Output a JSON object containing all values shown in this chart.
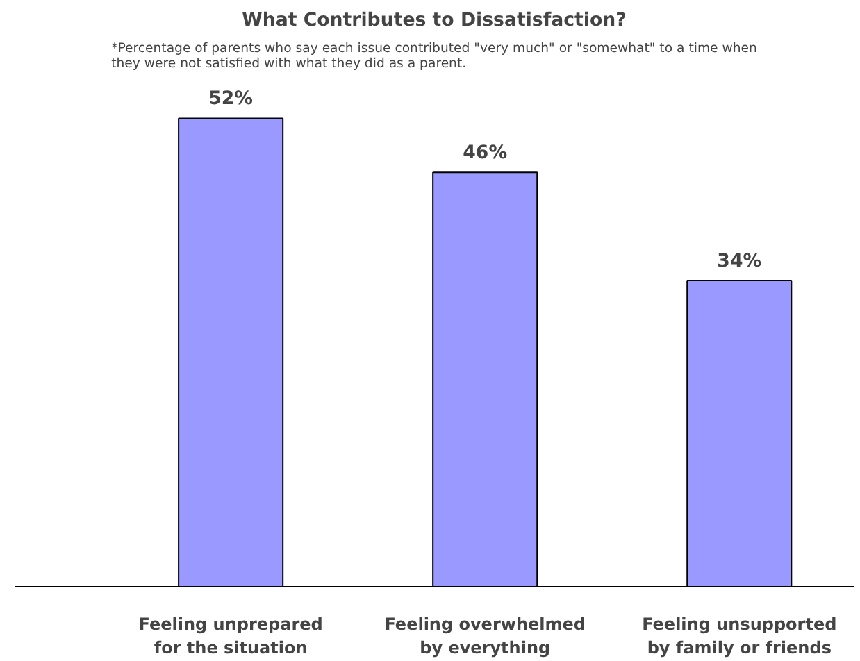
{
  "chart_data": {
    "type": "bar",
    "title": "What Contributes to Dissatisfaction?",
    "subtitle": "*Percentage of parents who say each issue contributed \"very much\" or \"somewhat\" to a time when they were not satisfied with what they did as a parent.",
    "categories": [
      "Feeling unprepared for the situation",
      "Feeling overwhelmed by everything",
      "Feeling unsupported by family or friends"
    ],
    "values": [
      52,
      46,
      34
    ],
    "color": "#9999ff",
    "value_labels": [
      "52%",
      "46%",
      "34%"
    ],
    "grid": false
  }
}
